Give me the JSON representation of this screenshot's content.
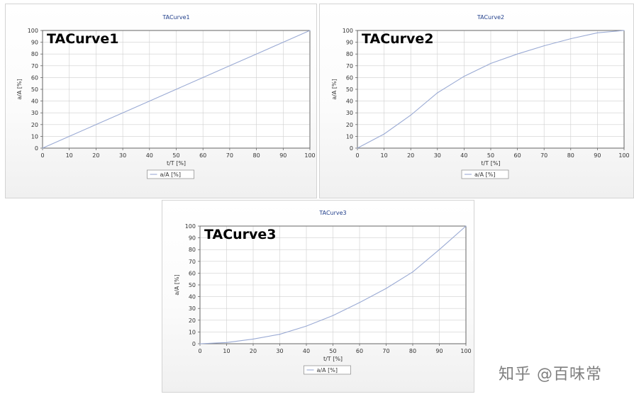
{
  "chart_data": [
    {
      "type": "line",
      "title": "TACurve1",
      "overlay_title": "TACurve1",
      "xlabel": "t/T [%]",
      "ylabel": "a/A [%]",
      "xlim": [
        0,
        100
      ],
      "ylim": [
        0,
        100
      ],
      "xticks": [
        0,
        10,
        20,
        30,
        40,
        50,
        60,
        70,
        80,
        90,
        100
      ],
      "yticks": [
        0,
        10,
        20,
        30,
        40,
        50,
        60,
        70,
        80,
        90,
        100
      ],
      "grid": true,
      "legend_position": "bottom",
      "series": [
        {
          "name": "a/A [%]",
          "color": "#9aaad4",
          "x": [
            0,
            10,
            20,
            30,
            40,
            50,
            60,
            70,
            80,
            90,
            100
          ],
          "y": [
            0,
            10,
            20,
            30,
            40,
            50,
            60,
            70,
            80,
            90,
            100
          ]
        }
      ]
    },
    {
      "type": "line",
      "title": "TACurve2",
      "overlay_title": "TACurve2",
      "xlabel": "t/T [%]",
      "ylabel": "a/A [%]",
      "xlim": [
        0,
        100
      ],
      "ylim": [
        0,
        100
      ],
      "xticks": [
        0,
        10,
        20,
        30,
        40,
        50,
        60,
        70,
        80,
        90,
        100
      ],
      "yticks": [
        0,
        10,
        20,
        30,
        40,
        50,
        60,
        70,
        80,
        90,
        100
      ],
      "grid": true,
      "legend_position": "bottom",
      "series": [
        {
          "name": "a/A [%]",
          "color": "#9aaad4",
          "x": [
            0,
            10,
            20,
            30,
            40,
            50,
            60,
            70,
            80,
            90,
            100
          ],
          "y": [
            0,
            12,
            28,
            47,
            61,
            72,
            80,
            87,
            93,
            98,
            100
          ]
        }
      ]
    },
    {
      "type": "line",
      "title": "TACurve3",
      "overlay_title": "TACurve3",
      "xlabel": "t/T [%]",
      "ylabel": "a/A [%]",
      "xlim": [
        0,
        100
      ],
      "ylim": [
        0,
        100
      ],
      "xticks": [
        0,
        10,
        20,
        30,
        40,
        50,
        60,
        70,
        80,
        90,
        100
      ],
      "yticks": [
        0,
        10,
        20,
        30,
        40,
        50,
        60,
        70,
        80,
        90,
        100
      ],
      "grid": true,
      "legend_position": "bottom",
      "series": [
        {
          "name": "a/A [%]",
          "color": "#9aaad4",
          "x": [
            0,
            10,
            20,
            30,
            40,
            50,
            60,
            70,
            80,
            90,
            100
          ],
          "y": [
            0,
            1,
            4,
            8,
            15,
            24,
            35,
            47,
            61,
            80,
            100
          ]
        }
      ]
    }
  ],
  "watermark": "知乎 @百味常"
}
